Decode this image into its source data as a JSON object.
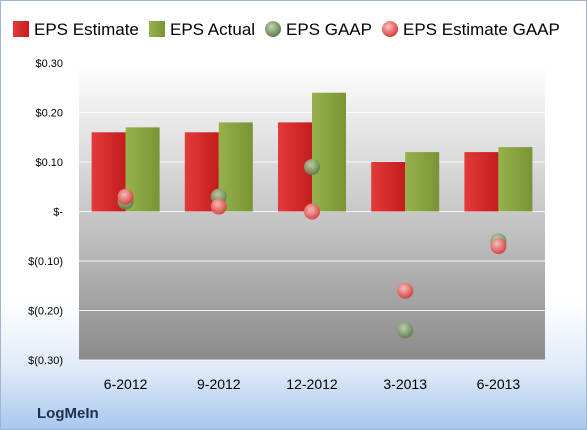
{
  "chart_data": {
    "type": "bar",
    "categories": [
      "6-2012",
      "9-2012",
      "12-2012",
      "3-2013",
      "6-2013"
    ],
    "series": [
      {
        "name": "EPS Estimate",
        "kind": "bar",
        "color": "#d42a2a",
        "values": [
          0.16,
          0.16,
          0.18,
          0.1,
          0.12
        ]
      },
      {
        "name": "EPS Actual",
        "kind": "bar",
        "color": "#86a33e",
        "values": [
          0.17,
          0.18,
          0.24,
          0.12,
          0.13
        ]
      },
      {
        "name": "EPS GAAP",
        "kind": "scatter",
        "color": "#7f9a62",
        "values": [
          0.02,
          0.03,
          0.09,
          -0.24,
          -0.06
        ]
      },
      {
        "name": "EPS Estimate GAAP",
        "kind": "scatter",
        "color": "#e86a6a",
        "values": [
          0.03,
          0.01,
          0.0,
          -0.16,
          -0.07
        ]
      }
    ],
    "ylim": [
      -0.3,
      0.3
    ],
    "yticks": [
      {
        "value": 0.3,
        "label": "$0.30"
      },
      {
        "value": 0.2,
        "label": "$0.20"
      },
      {
        "value": 0.1,
        "label": "$0.10"
      },
      {
        "value": 0.0,
        "label": "$-"
      },
      {
        "value": -0.1,
        "label": "$(0.10)"
      },
      {
        "value": -0.2,
        "label": "$(0.20)"
      },
      {
        "value": -0.3,
        "label": "$(0.30)"
      }
    ],
    "grid": true,
    "legend": "top",
    "title": "",
    "xlabel": "",
    "ylabel": ""
  },
  "brand": "LogMeIn"
}
